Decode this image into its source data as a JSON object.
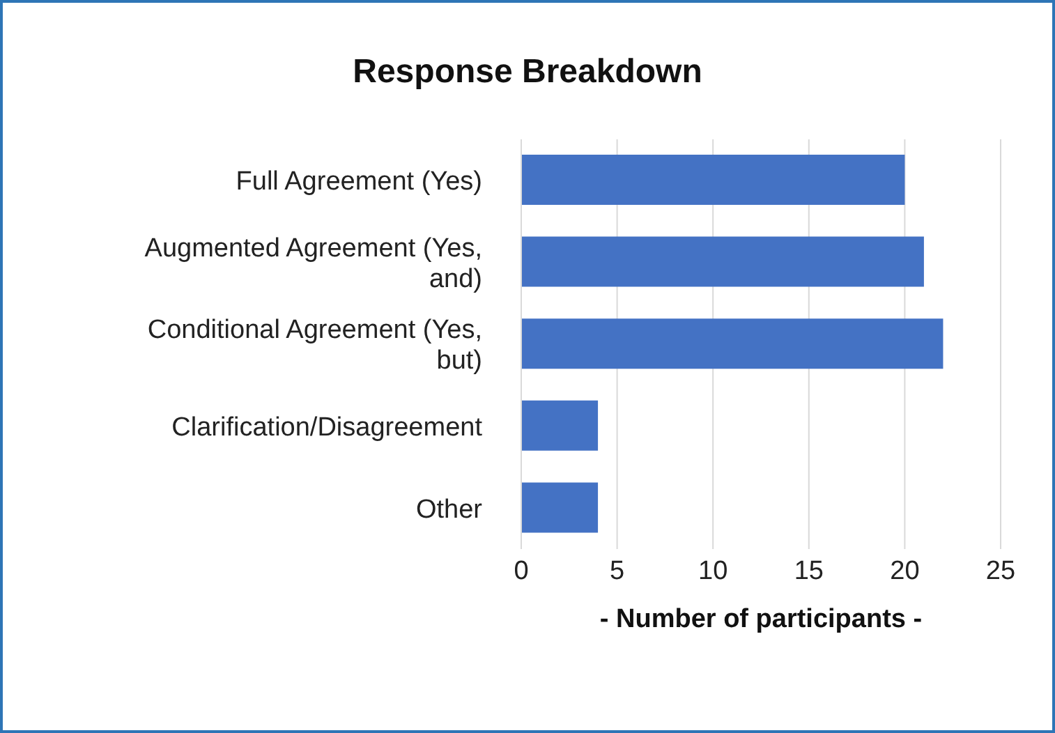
{
  "chart_data": {
    "type": "bar",
    "orientation": "horizontal",
    "title": "Response Breakdown",
    "xlabel": "- Number of participants -",
    "categories": [
      "Full Agreement (Yes)",
      "Augmented Agreement (Yes, and)",
      "Conditional Agreement (Yes, but)",
      "Clarification/Disagreement",
      "Other"
    ],
    "values": [
      20,
      21,
      22,
      4,
      4
    ],
    "color": "#4472c4",
    "xlim": [
      0,
      25
    ],
    "xticks": [
      0,
      5,
      10,
      15,
      20,
      25
    ],
    "grid": "x",
    "legend": false
  }
}
